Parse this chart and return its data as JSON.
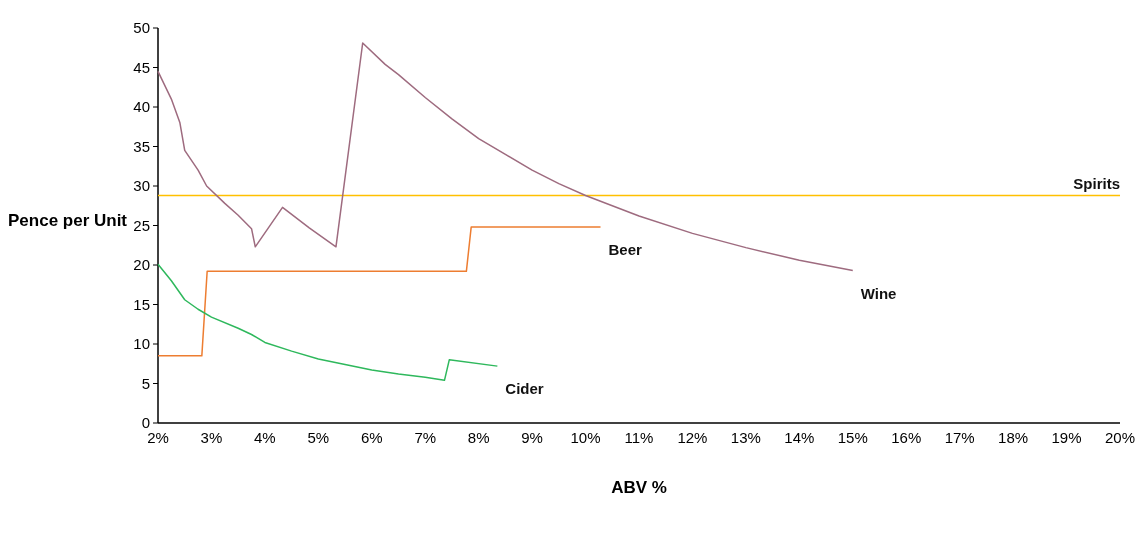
{
  "chart_data": {
    "type": "line",
    "xlabel": "ABV %",
    "ylabel": "Pence per Unit",
    "grid": false,
    "legend": false,
    "marker": "none",
    "line_style": "solid",
    "xlim": [
      2,
      20
    ],
    "xticks": [
      {
        "value": 2,
        "label": "2%"
      },
      {
        "value": 3,
        "label": "3%"
      },
      {
        "value": 4,
        "label": "4%"
      },
      {
        "value": 5,
        "label": "5%"
      },
      {
        "value": 6,
        "label": "6%"
      },
      {
        "value": 7,
        "label": "7%"
      },
      {
        "value": 8,
        "label": "8%"
      },
      {
        "value": 9,
        "label": "9%"
      },
      {
        "value": 10,
        "label": "10%"
      },
      {
        "value": 11,
        "label": "11%"
      },
      {
        "value": 12,
        "label": "12%"
      },
      {
        "value": 13,
        "label": "13%"
      },
      {
        "value": 14,
        "label": "14%"
      },
      {
        "value": 15,
        "label": "15%"
      },
      {
        "value": 16,
        "label": "16%"
      },
      {
        "value": 17,
        "label": "17%"
      },
      {
        "value": 18,
        "label": "18%"
      },
      {
        "value": 19,
        "label": "19%"
      },
      {
        "value": 20,
        "label": "20%"
      }
    ],
    "ylim": [
      0,
      50
    ],
    "yticks": [
      0,
      5,
      10,
      15,
      20,
      25,
      30,
      35,
      40,
      45,
      50
    ],
    "series": [
      {
        "name": "Spirits",
        "color": "#ffc000",
        "x": [
          2,
          20
        ],
        "values": [
          28.8,
          28.8
        ]
      },
      {
        "name": "Beer",
        "color": "#ed7d31",
        "x": [
          2,
          2.82,
          2.92,
          7.77,
          7.86,
          10.28
        ],
        "values": [
          8.5,
          8.5,
          19.2,
          19.2,
          24.8,
          24.8
        ]
      },
      {
        "name": "Wine",
        "color": "#9e6b7f",
        "x": [
          2,
          2.25,
          2.41,
          2.5,
          2.75,
          2.91,
          3.25,
          3.5,
          3.75,
          3.82,
          4.33,
          4.83,
          5.33,
          5.83,
          6.25,
          6.5,
          7,
          7.5,
          8,
          8.5,
          9,
          9.5,
          10,
          11,
          12,
          13,
          14,
          15
        ],
        "values": [
          44.5,
          41,
          38,
          34.5,
          32,
          30,
          27.8,
          26.3,
          24.6,
          22.3,
          27.3,
          24.7,
          22.3,
          48.1,
          45.4,
          44.1,
          41.2,
          38.5,
          36,
          34,
          32,
          30.3,
          28.8,
          26.2,
          24,
          22.2,
          20.6,
          19.3
        ]
      },
      {
        "name": "Cider",
        "color": "#2eb85c",
        "x": [
          2,
          2.25,
          2.5,
          2.75,
          3,
          3.5,
          3.75,
          4,
          4.5,
          5,
          5.5,
          6,
          6.5,
          7,
          7.36,
          7.45,
          8.35
        ],
        "values": [
          20.1,
          18,
          15.6,
          14.4,
          13.4,
          12,
          11.2,
          10.2,
          9.1,
          8.1,
          7.4,
          6.7,
          6.2,
          5.8,
          5.4,
          8,
          7.2
        ]
      }
    ]
  }
}
